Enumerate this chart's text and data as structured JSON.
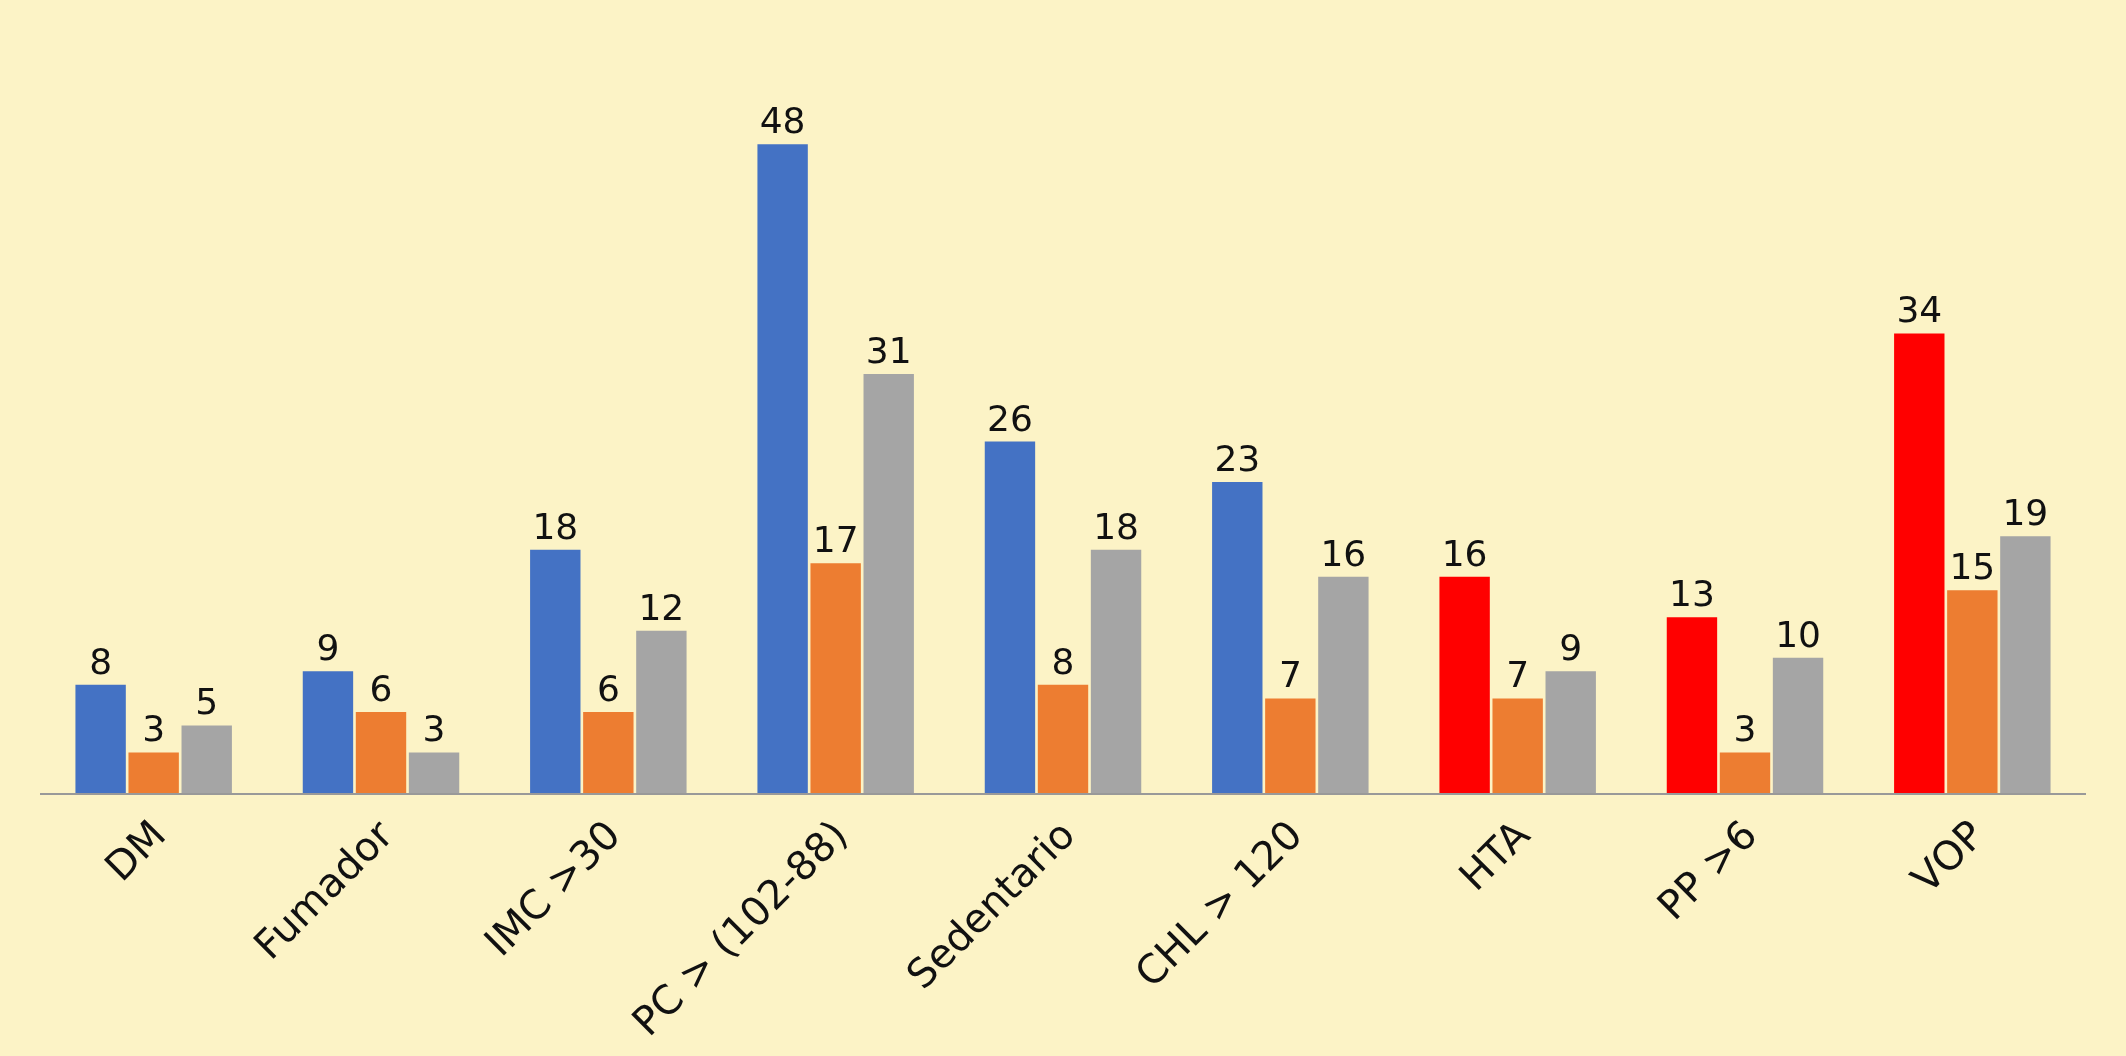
{
  "chart_data": {
    "type": "bar",
    "categories": [
      "DM",
      "Fumador",
      "IMC >30",
      "PC > (102-88)",
      "Sedentario",
      "CHL > 120",
      "HTA",
      "PP >6",
      "VOP"
    ],
    "series": [
      {
        "colors": [
          "#4472c4",
          "#4472c4",
          "#4472c4",
          "#4472c4",
          "#4472c4",
          "#4472c4",
          "#ff0000",
          "#ff0000",
          "#ff0000"
        ],
        "values": [
          8,
          9,
          18,
          48,
          26,
          23,
          16,
          13,
          34
        ]
      },
      {
        "color": "#ed7d31",
        "values": [
          3,
          6,
          6,
          17,
          8,
          7,
          7,
          3,
          15
        ]
      },
      {
        "color": "#a5a5a5",
        "values": [
          5,
          3,
          12,
          31,
          18,
          16,
          9,
          10,
          19
        ]
      }
    ],
    "data_labels": true,
    "grid": false,
    "legend": false
  }
}
